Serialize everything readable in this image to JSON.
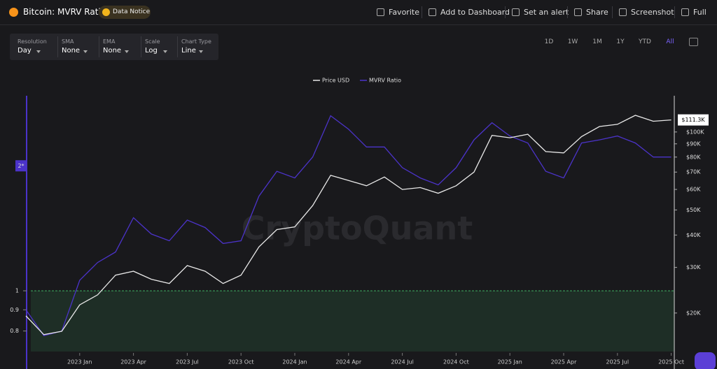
{
  "header": {
    "title": "Bitcoin: MVRV Ratio",
    "notice": "Data Notice",
    "toolbar": [
      "Favorite",
      "Add to Dashboard",
      "Set an alert",
      "Share",
      "Screenshot",
      "Full"
    ]
  },
  "controls": [
    {
      "label": "Resolution",
      "value": "Day"
    },
    {
      "label": "SMA",
      "value": "None"
    },
    {
      "label": "EMA",
      "value": "None"
    },
    {
      "label": "Scale",
      "value": "Log"
    },
    {
      "label": "Chart Type",
      "value": "Line"
    }
  ],
  "ranges": [
    "1D",
    "1W",
    "1M",
    "1Y",
    "YTD",
    "All"
  ],
  "active_range": "All",
  "watermark": "CryptoQuant",
  "chart_data": {
    "type": "line",
    "log_scale": true,
    "grid": false,
    "legend": "top",
    "x": [
      "2022-10",
      "2022-11",
      "2022-12",
      "2023-01",
      "2023-02",
      "2023-03",
      "2023-04",
      "2023-05",
      "2023-06",
      "2023-07",
      "2023-08",
      "2023-09",
      "2023-10",
      "2023-11",
      "2023-12",
      "2024-01",
      "2024-02",
      "2024-03",
      "2024-04",
      "2024-05",
      "2024-06",
      "2024-07",
      "2024-08",
      "2024-09",
      "2024-10",
      "2024-11",
      "2024-12",
      "2025-01",
      "2025-02",
      "2025-03",
      "2025-04",
      "2025-05",
      "2025-06",
      "2025-07",
      "2025-08",
      "2025-09",
      "2025-10"
    ],
    "xticks": [
      {
        "value": "2023-01",
        "label": "2023 Jan"
      },
      {
        "value": "2023-04",
        "label": "2023 Apr"
      },
      {
        "value": "2023-07",
        "label": "2023 Jul"
      },
      {
        "value": "2023-10",
        "label": "2023 Oct"
      },
      {
        "value": "2024-01",
        "label": "2024 Jan"
      },
      {
        "value": "2024-04",
        "label": "2024 Apr"
      },
      {
        "value": "2024-07",
        "label": "2024 Jul"
      },
      {
        "value": "2024-10",
        "label": "2024 Oct"
      },
      {
        "value": "2025-01",
        "label": "2025 Jan"
      },
      {
        "value": "2025-04",
        "label": "2025 Apr"
      },
      {
        "value": "2025-07",
        "label": "2025 Jul"
      },
      {
        "value": "2025-10",
        "label": "2025 Oct"
      }
    ],
    "series": [
      {
        "name": "Price USD",
        "color": "#e8e8e8",
        "axis": "y2",
        "values": [
          19500,
          16500,
          17000,
          21500,
          23500,
          28000,
          29000,
          27000,
          26000,
          30500,
          29000,
          26000,
          28000,
          36000,
          42000,
          43000,
          52000,
          68000,
          65000,
          62000,
          67000,
          60000,
          61000,
          58000,
          62000,
          70000,
          97000,
          95000,
          98000,
          84000,
          83000,
          96000,
          105000,
          107000,
          116000,
          110000,
          111300
        ],
        "value_labels": [
          null,
          null,
          null,
          null,
          null,
          null,
          null,
          null,
          null,
          null,
          null,
          null,
          null,
          null,
          null,
          null,
          null,
          null,
          null,
          null,
          null,
          null,
          null,
          null,
          null,
          null,
          null,
          null,
          null,
          null,
          null,
          null,
          null,
          null,
          null,
          null,
          "$111.3K"
        ]
      },
      {
        "name": "MVRV Ratio",
        "color": "#4b33c9",
        "values": [
          0.9,
          0.78,
          0.8,
          1.06,
          1.17,
          1.24,
          1.5,
          1.37,
          1.32,
          1.48,
          1.42,
          1.3,
          1.32,
          1.69,
          1.94,
          1.87,
          2.1,
          2.64,
          2.45,
          2.22,
          2.22,
          1.98,
          1.87,
          1.8,
          1.98,
          2.31,
          2.54,
          2.36,
          2.27,
          1.94,
          1.87,
          2.27,
          2.31,
          2.36,
          2.27,
          2.1,
          2.1
        ]
      }
    ],
    "ylim": [
      0.714,
      2.95
    ],
    "yticks": [
      0.8,
      0.9,
      1,
      {
        "value": 2,
        "label": "2*"
      }
    ],
    "y2lim": [
      14200,
      138000
    ],
    "y2ticks": [
      {
        "value": 20000,
        "label": "$20K"
      },
      {
        "value": 30000,
        "label": "$30K"
      },
      {
        "value": 40000,
        "label": "$40K"
      },
      {
        "value": 50000,
        "label": "$50K"
      },
      {
        "value": 60000,
        "label": "$60K"
      },
      {
        "value": 70000,
        "label": "$70K"
      },
      {
        "value": 80000,
        "label": "$80K"
      },
      {
        "value": 90000,
        "label": "$90K"
      },
      {
        "value": 100000,
        "label": "$100K"
      }
    ],
    "threshold": 1,
    "threshold_color": "#3fae63"
  }
}
